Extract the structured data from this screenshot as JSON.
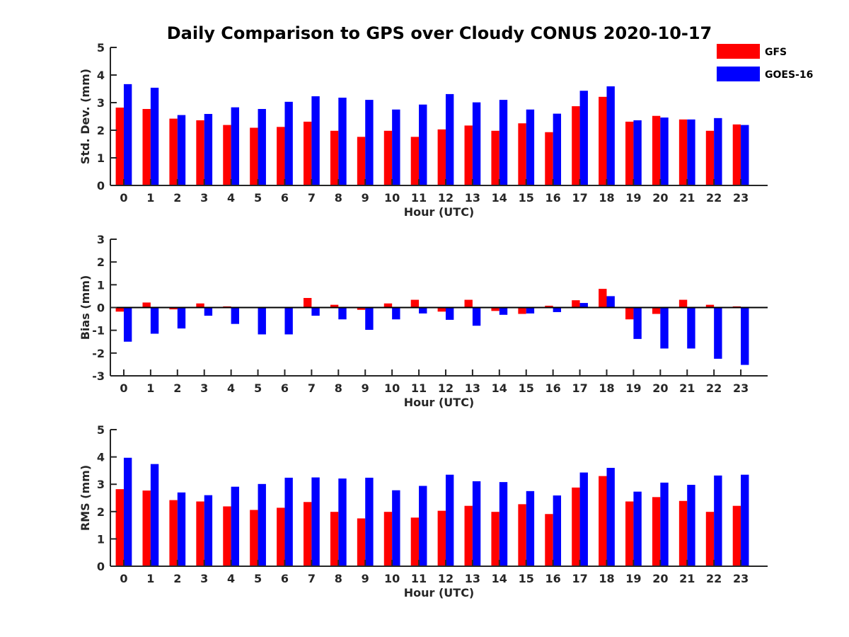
{
  "title": "Daily Comparison to GPS over Cloudy CONUS 2020-10-17",
  "legend": {
    "placement": "top-right",
    "entries": [
      {
        "name": "GFS",
        "color": "#ff0000"
      },
      {
        "name": "GOES-16",
        "color": "#0000ff"
      }
    ]
  },
  "chart_data": [
    {
      "type": "bar",
      "xlabel": "Hour (UTC)",
      "ylabel": "Std. Dev. (mm)",
      "ylim": [
        0,
        5
      ],
      "yticks": [
        0,
        1,
        2,
        3,
        4,
        5
      ],
      "categories": [
        "0",
        "1",
        "2",
        "3",
        "4",
        "5",
        "6",
        "7",
        "8",
        "9",
        "10",
        "11",
        "12",
        "13",
        "14",
        "15",
        "16",
        "17",
        "18",
        "19",
        "20",
        "21",
        "22",
        "23"
      ],
      "series": [
        {
          "name": "GFS",
          "color": "#ff0000",
          "values": [
            2.82,
            2.77,
            2.42,
            2.36,
            2.19,
            2.09,
            2.12,
            2.31,
            1.98,
            1.76,
            1.98,
            1.76,
            2.03,
            2.17,
            1.98,
            2.25,
            1.93,
            2.87,
            3.21,
            2.31,
            2.52,
            2.39,
            1.98,
            2.21
          ]
        },
        {
          "name": "GOES-16",
          "color": "#0000ff",
          "values": [
            3.67,
            3.54,
            2.55,
            2.59,
            2.83,
            2.77,
            3.03,
            3.23,
            3.18,
            3.1,
            2.75,
            2.93,
            3.31,
            3.01,
            3.1,
            2.75,
            2.6,
            3.43,
            3.59,
            2.36,
            2.46,
            2.39,
            2.44,
            2.19
          ]
        }
      ],
      "grid": false
    },
    {
      "type": "bar",
      "xlabel": "Hour (UTC)",
      "ylabel": "Bias (mm)",
      "ylim": [
        -3,
        3
      ],
      "yticks": [
        -3,
        -2,
        -1,
        0,
        1,
        2,
        3
      ],
      "categories": [
        "0",
        "1",
        "2",
        "3",
        "4",
        "5",
        "6",
        "7",
        "8",
        "9",
        "10",
        "11",
        "12",
        "13",
        "14",
        "15",
        "16",
        "17",
        "18",
        "19",
        "20",
        "21",
        "22",
        "23"
      ],
      "series": [
        {
          "name": "GFS",
          "color": "#ff0000",
          "values": [
            -0.18,
            0.22,
            -0.08,
            0.18,
            0.05,
            -0.03,
            -0.02,
            0.42,
            0.12,
            -0.1,
            0.18,
            0.34,
            -0.18,
            0.34,
            -0.15,
            -0.28,
            0.08,
            0.32,
            0.82,
            -0.52,
            -0.28,
            0.34,
            0.12,
            0.05
          ]
        },
        {
          "name": "GOES-16",
          "color": "#0000ff",
          "values": [
            -1.5,
            -1.15,
            -0.92,
            -0.36,
            -0.72,
            -1.18,
            -1.18,
            -0.36,
            -0.52,
            -0.98,
            -0.52,
            -0.26,
            -0.54,
            -0.8,
            -0.32,
            -0.26,
            -0.2,
            0.2,
            0.5,
            -1.38,
            -1.8,
            -1.8,
            -2.25,
            -2.52
          ]
        }
      ],
      "grid": false
    },
    {
      "type": "bar",
      "xlabel": "Hour (UTC)",
      "ylabel": "RMS (mm)",
      "ylim": [
        0,
        5
      ],
      "yticks": [
        0,
        1,
        2,
        3,
        4,
        5
      ],
      "categories": [
        "0",
        "1",
        "2",
        "3",
        "4",
        "5",
        "6",
        "7",
        "8",
        "9",
        "10",
        "11",
        "12",
        "13",
        "14",
        "15",
        "16",
        "17",
        "18",
        "19",
        "20",
        "21",
        "22",
        "23"
      ],
      "series": [
        {
          "name": "GFS",
          "color": "#ff0000",
          "values": [
            2.82,
            2.77,
            2.42,
            2.37,
            2.19,
            2.06,
            2.14,
            2.35,
            1.99,
            1.75,
            1.99,
            1.78,
            2.03,
            2.21,
            1.99,
            2.27,
            1.91,
            2.88,
            3.3,
            2.37,
            2.53,
            2.39,
            1.99,
            2.21
          ]
        },
        {
          "name": "GOES-16",
          "color": "#0000ff",
          "values": [
            3.97,
            3.74,
            2.7,
            2.6,
            2.91,
            3.01,
            3.24,
            3.25,
            3.21,
            3.24,
            2.78,
            2.94,
            3.35,
            3.11,
            3.08,
            2.75,
            2.59,
            3.43,
            3.6,
            2.73,
            3.06,
            2.98,
            3.32,
            3.35
          ]
        }
      ],
      "grid": false
    }
  ]
}
